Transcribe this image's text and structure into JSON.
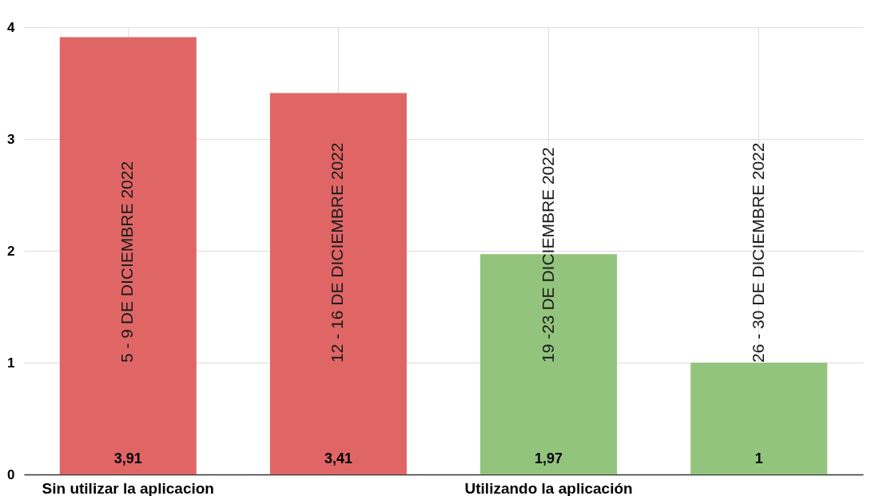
{
  "chart_data": {
    "type": "bar",
    "categories": [
      "Sin utilizar la aplicacion",
      null,
      "Utilizando la aplicación",
      null
    ],
    "values": [
      3.91,
      3.41,
      1.97,
      1
    ],
    "colors": [
      "#e06666",
      "#e06666",
      "#93c47d",
      "#93c47d"
    ],
    "value_labels": [
      "3,91",
      "3,41",
      "1,97",
      "1"
    ],
    "ylim": [
      0,
      4
    ],
    "yticks": [
      0,
      1,
      2,
      3,
      4
    ],
    "grid": true,
    "annotations": [
      "5 - 9 DE DICIEMBRE 2022",
      "12 - 16 DE DICIEMBRE 2022",
      "19 -23 DE DICIEMBRE 2022",
      "26 - 30 DE DICIEMBRE 2022"
    ]
  }
}
